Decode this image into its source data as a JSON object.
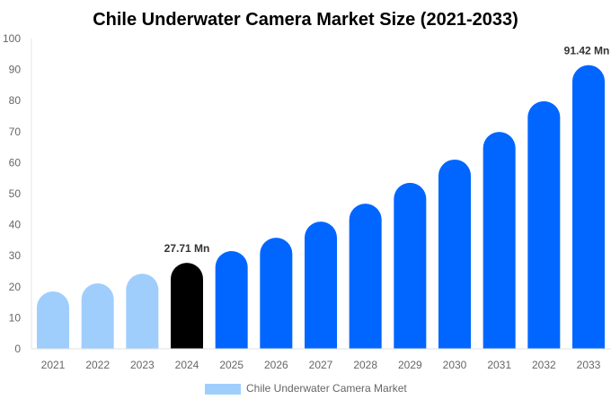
{
  "chart_data": {
    "type": "bar",
    "title": "Chile Underwater Camera Market Size (2021-2033)",
    "categories": [
      "2021",
      "2022",
      "2023",
      "2024",
      "2025",
      "2026",
      "2027",
      "2028",
      "2029",
      "2030",
      "2031",
      "2032",
      "2033"
    ],
    "series": [
      {
        "name": "Chile Underwater Camera Market",
        "values": [
          18.5,
          21.1,
          24.2,
          27.71,
          31.5,
          35.8,
          41.0,
          46.8,
          53.5,
          61.0,
          69.9,
          79.8,
          91.42
        ]
      }
    ],
    "data_labels": [
      {
        "category": "2024",
        "text": "27.71 Mn"
      },
      {
        "category": "2033",
        "text": "91.42 Mn"
      }
    ],
    "ylim": [
      0,
      100
    ],
    "yticks": [
      0,
      10,
      20,
      30,
      40,
      50,
      60,
      70,
      80,
      90,
      100
    ],
    "grid": false,
    "legend_placement": "bottom",
    "colors": {
      "historical": "#9FCEFC",
      "base_year": "#000000",
      "forecast": "#0066FF",
      "legend_swatch": "#9FCEFC"
    }
  }
}
